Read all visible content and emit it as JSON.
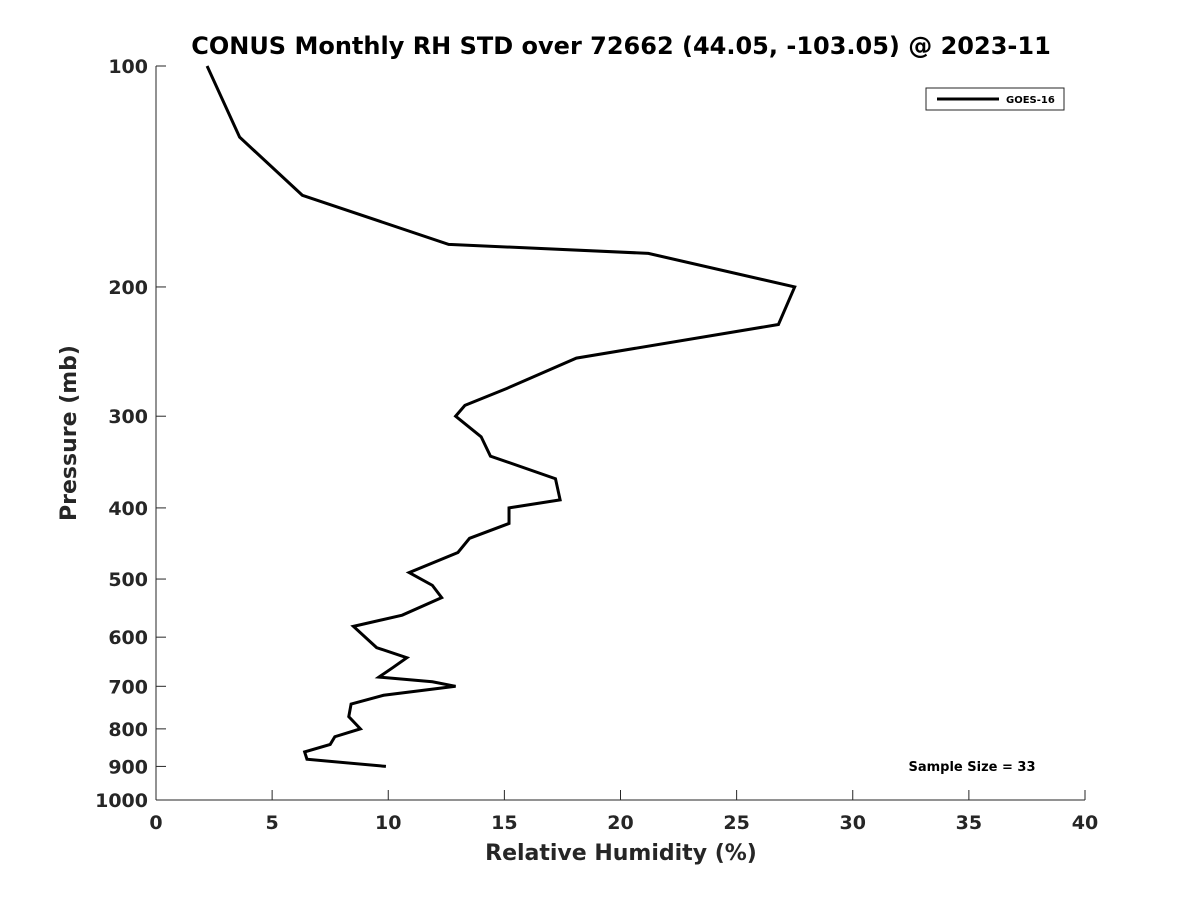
{
  "chart_data": {
    "type": "line",
    "title": "CONUS Monthly RH STD over 72662 (44.05, -103.05) @ 2023-11",
    "xlabel": "Relative Humidity (%)",
    "ylabel": "Pressure (mb)",
    "xlim": [
      0,
      40
    ],
    "ylim": [
      100,
      1000
    ],
    "y_scale": "log",
    "y_reversed": true,
    "grid": false,
    "x_ticks": [
      0,
      5,
      10,
      15,
      20,
      25,
      30,
      35,
      40
    ],
    "y_ticks": [
      100,
      200,
      300,
      400,
      500,
      600,
      700,
      800,
      900,
      1000
    ],
    "legend": {
      "placement": "top-right",
      "entries": [
        "GOES-16"
      ]
    },
    "annotation": "Sample Size = 33",
    "series": [
      {
        "name": "GOES-16",
        "color": "#000000",
        "points": [
          {
            "x": 2.2,
            "y": 100
          },
          {
            "x": 3.6,
            "y": 125
          },
          {
            "x": 6.3,
            "y": 150
          },
          {
            "x": 12.6,
            "y": 175
          },
          {
            "x": 21.2,
            "y": 180
          },
          {
            "x": 27.5,
            "y": 200
          },
          {
            "x": 26.8,
            "y": 225
          },
          {
            "x": 18.1,
            "y": 250
          },
          {
            "x": 15.1,
            "y": 275
          },
          {
            "x": 13.3,
            "y": 290
          },
          {
            "x": 12.9,
            "y": 300
          },
          {
            "x": 14.0,
            "y": 320
          },
          {
            "x": 14.4,
            "y": 340
          },
          {
            "x": 17.2,
            "y": 365
          },
          {
            "x": 17.4,
            "y": 390
          },
          {
            "x": 15.2,
            "y": 400
          },
          {
            "x": 15.2,
            "y": 420
          },
          {
            "x": 13.5,
            "y": 440
          },
          {
            "x": 13.0,
            "y": 460
          },
          {
            "x": 10.9,
            "y": 490
          },
          {
            "x": 11.9,
            "y": 510
          },
          {
            "x": 12.3,
            "y": 530
          },
          {
            "x": 10.6,
            "y": 560
          },
          {
            "x": 8.5,
            "y": 580
          },
          {
            "x": 9.5,
            "y": 620
          },
          {
            "x": 10.8,
            "y": 640
          },
          {
            "x": 10.2,
            "y": 660
          },
          {
            "x": 9.6,
            "y": 680
          },
          {
            "x": 11.9,
            "y": 690
          },
          {
            "x": 12.9,
            "y": 700
          },
          {
            "x": 9.8,
            "y": 720
          },
          {
            "x": 8.4,
            "y": 740
          },
          {
            "x": 8.3,
            "y": 770
          },
          {
            "x": 8.8,
            "y": 800
          },
          {
            "x": 7.7,
            "y": 820
          },
          {
            "x": 7.5,
            "y": 840
          },
          {
            "x": 6.4,
            "y": 860
          },
          {
            "x": 6.5,
            "y": 880
          },
          {
            "x": 9.9,
            "y": 900
          }
        ]
      }
    ]
  }
}
